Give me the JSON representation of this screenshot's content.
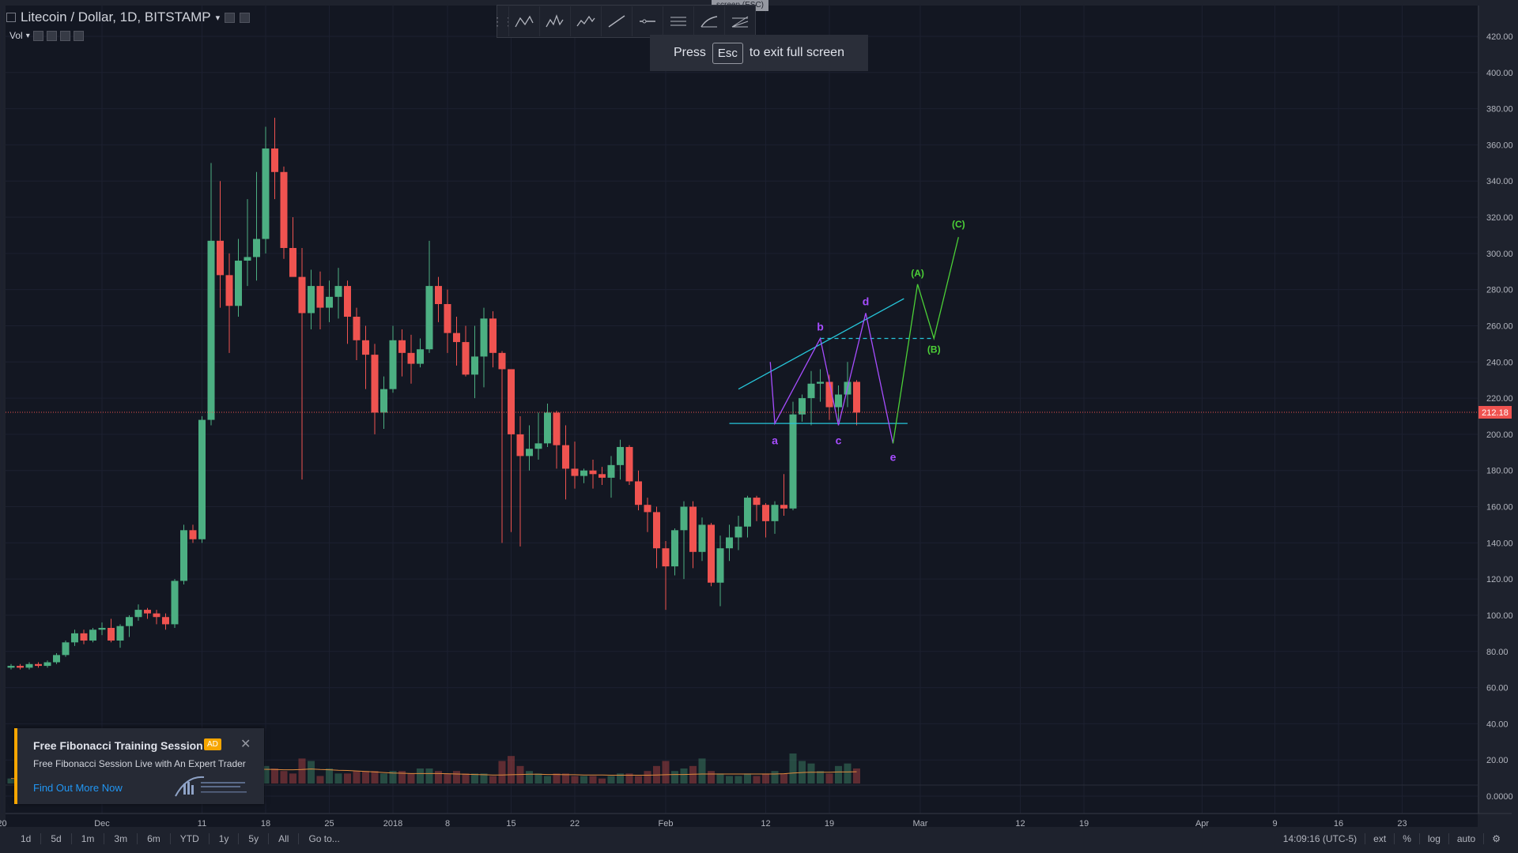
{
  "header": {
    "symbol_title": "Litecoin / Dollar, 1D, BITSTAMP",
    "volume_label": "Vol"
  },
  "fullscreen": {
    "tab_text": "screen (ESC)",
    "press": "Press",
    "key": "Esc",
    "rest": "to exit full screen"
  },
  "toolbar": {
    "tools": [
      "abcd-pattern-icon",
      "head-shoulders-icon",
      "elliott-wave-icon",
      "trend-line-icon",
      "horizontal-ray-icon",
      "parallel-channel-icon",
      "brush-icon",
      "fib-fan-icon"
    ]
  },
  "bottom_bar": {
    "ranges": [
      "1d",
      "5d",
      "1m",
      "3m",
      "6m",
      "YTD",
      "1y",
      "5y",
      "All"
    ],
    "goto": "Go to...",
    "clock": "14:09:16 (UTC-5)",
    "ext": "ext",
    "percent": "%",
    "log": "log",
    "auto": "auto"
  },
  "ad": {
    "title": "Free Fibonacci Training Session",
    "badge": "AD",
    "description": "Free Fibonacci Session Live with An Expert Trader",
    "cta": "Find Out More Now"
  },
  "colors": {
    "background": "#1e222d",
    "up": "#4caf82",
    "down": "#ef5350",
    "price_line": "#ef5350",
    "ma": "#e08c3e",
    "pattern": "#a64dff",
    "trend": "#26c6da",
    "wave": "#4cd137"
  },
  "chart_data": {
    "type": "candlestick",
    "price_axis": {
      "min": 0,
      "max": 420,
      "ticks": [
        "420.00",
        "400.00",
        "380.00",
        "360.00",
        "340.00",
        "320.00",
        "300.00",
        "280.00",
        "260.00",
        "240.00",
        "220.00",
        "200.00",
        "180.00",
        "160.00",
        "140.00",
        "120.00",
        "100.00",
        "80.00",
        "60.00",
        "40.00",
        "20.00",
        "0.0000"
      ]
    },
    "last_price": "212.18",
    "time_axis": [
      {
        "label": "20",
        "day": -1
      },
      {
        "label": "Dec",
        "day": 10
      },
      {
        "label": "11",
        "day": 21
      },
      {
        "label": "18",
        "day": 28
      },
      {
        "label": "25",
        "day": 35
      },
      {
        "label": "2018",
        "day": 42
      },
      {
        "label": "8",
        "day": 48
      },
      {
        "label": "15",
        "day": 55
      },
      {
        "label": "22",
        "day": 62
      },
      {
        "label": "Feb",
        "day": 72
      },
      {
        "label": "12",
        "day": 83
      },
      {
        "label": "19",
        "day": 90
      },
      {
        "label": "Mar",
        "day": 100
      },
      {
        "label": "12",
        "day": 111
      },
      {
        "label": "19",
        "day": 118
      },
      {
        "label": "Apr",
        "day": 131
      },
      {
        "label": "9",
        "day": 139
      },
      {
        "label": "16",
        "day": 146
      },
      {
        "label": "23",
        "day": 153
      }
    ],
    "candles": [
      [
        71,
        73,
        70,
        72
      ],
      [
        72,
        73,
        70,
        71
      ],
      [
        71,
        74,
        70,
        73
      ],
      [
        73,
        74,
        71,
        72
      ],
      [
        72,
        75,
        71,
        74
      ],
      [
        74,
        79,
        73,
        78
      ],
      [
        78,
        86,
        77,
        85
      ],
      [
        85,
        92,
        83,
        90
      ],
      [
        90,
        92,
        84,
        86
      ],
      [
        86,
        93,
        85,
        92
      ],
      [
        92,
        96,
        89,
        93
      ],
      [
        93,
        98,
        85,
        86
      ],
      [
        86,
        95,
        82,
        94
      ],
      [
        94,
        100,
        88,
        99
      ],
      [
        99,
        106,
        97,
        103
      ],
      [
        103,
        104,
        98,
        101
      ],
      [
        101,
        103,
        95,
        99
      ],
      [
        99,
        101,
        92,
        95
      ],
      [
        95,
        120,
        93,
        119
      ],
      [
        119,
        150,
        117,
        147
      ],
      [
        147,
        150,
        140,
        142
      ],
      [
        142,
        210,
        140,
        208
      ],
      [
        208,
        350,
        205,
        307
      ],
      [
        307,
        340,
        270,
        288
      ],
      [
        288,
        300,
        245,
        271
      ],
      [
        271,
        308,
        265,
        296
      ],
      [
        296,
        330,
        282,
        298
      ],
      [
        298,
        345,
        285,
        308
      ],
      [
        308,
        370,
        300,
        358
      ],
      [
        358,
        375,
        330,
        345
      ],
      [
        345,
        348,
        297,
        303
      ],
      [
        303,
        320,
        290,
        287
      ],
      [
        287,
        303,
        175,
        267
      ],
      [
        267,
        291,
        258,
        282
      ],
      [
        282,
        290,
        258,
        270
      ],
      [
        270,
        285,
        262,
        276
      ],
      [
        276,
        292,
        264,
        282
      ],
      [
        282,
        285,
        250,
        265
      ],
      [
        265,
        270,
        241,
        252
      ],
      [
        252,
        260,
        225,
        244
      ],
      [
        244,
        250,
        200,
        212
      ],
      [
        212,
        232,
        203,
        225
      ],
      [
        225,
        260,
        223,
        252
      ],
      [
        252,
        258,
        232,
        245
      ],
      [
        245,
        255,
        228,
        239
      ],
      [
        239,
        253,
        237,
        247
      ],
      [
        247,
        307,
        245,
        282
      ],
      [
        282,
        287,
        262,
        272
      ],
      [
        272,
        280,
        245,
        256
      ],
      [
        256,
        265,
        238,
        251
      ],
      [
        251,
        260,
        232,
        233
      ],
      [
        233,
        260,
        220,
        243
      ],
      [
        243,
        270,
        226,
        264
      ],
      [
        264,
        268,
        237,
        245
      ],
      [
        245,
        246,
        140,
        236
      ],
      [
        236,
        234,
        146,
        200
      ],
      [
        200,
        210,
        138,
        188
      ],
      [
        188,
        205,
        180,
        192
      ],
      [
        192,
        212,
        186,
        195
      ],
      [
        195,
        217,
        193,
        212
      ],
      [
        212,
        213,
        181,
        194
      ],
      [
        194,
        205,
        164,
        181
      ],
      [
        181,
        196,
        170,
        177
      ],
      [
        177,
        181,
        173,
        180
      ],
      [
        180,
        186,
        170,
        178
      ],
      [
        178,
        182,
        172,
        176
      ],
      [
        176,
        188,
        165,
        183
      ],
      [
        183,
        197,
        175,
        193
      ],
      [
        193,
        194,
        172,
        174
      ],
      [
        174,
        180,
        158,
        161
      ],
      [
        161,
        165,
        146,
        157
      ],
      [
        157,
        160,
        126,
        137
      ],
      [
        137,
        141,
        103,
        127
      ],
      [
        127,
        148,
        122,
        147
      ],
      [
        147,
        163,
        120,
        160
      ],
      [
        160,
        163,
        126,
        135
      ],
      [
        135,
        154,
        130,
        150
      ],
      [
        150,
        151,
        116,
        118
      ],
      [
        118,
        144,
        105,
        137
      ],
      [
        137,
        150,
        130,
        143
      ],
      [
        143,
        155,
        136,
        149
      ],
      [
        149,
        166,
        143,
        165
      ],
      [
        165,
        166,
        152,
        161
      ],
      [
        161,
        162,
        143,
        152
      ],
      [
        152,
        163,
        145,
        161
      ],
      [
        161,
        178,
        155,
        159
      ],
      [
        159,
        218,
        158,
        211
      ],
      [
        211,
        222,
        207,
        220
      ],
      [
        220,
        235,
        205,
        228
      ],
      [
        228,
        236,
        218,
        229
      ],
      [
        229,
        233,
        208,
        215
      ],
      [
        215,
        227,
        207,
        222
      ],
      [
        222,
        240,
        215,
        229
      ],
      [
        229,
        230,
        205,
        212
      ]
    ],
    "volume_max_scale": 60,
    "volumes": [
      2,
      2,
      2,
      2,
      2,
      2,
      3,
      3,
      3,
      2,
      2,
      2,
      4,
      2,
      3,
      3,
      2,
      2,
      3,
      3,
      2,
      7,
      10,
      9,
      7,
      6,
      5,
      6,
      7,
      6,
      5,
      4,
      10,
      9,
      3,
      6,
      4,
      4,
      5,
      5,
      5,
      4,
      5,
      5,
      4,
      6,
      6,
      5,
      4,
      5,
      4,
      4,
      4,
      3,
      9,
      11,
      7,
      5,
      4,
      3,
      4,
      4,
      3,
      3,
      3,
      2,
      3,
      4,
      4,
      3,
      5,
      7,
      9,
      5,
      6,
      7,
      10,
      5,
      4,
      3,
      3,
      4,
      3,
      4,
      5,
      4,
      12,
      9,
      8,
      5,
      4,
      7,
      8,
      6
    ],
    "ma_values": [
      2,
      2,
      2,
      2,
      2,
      2,
      2,
      2,
      2,
      2,
      2,
      2,
      2,
      2,
      2,
      3,
      3,
      3,
      3,
      3,
      3,
      3.3,
      4,
      4.6,
      5,
      5.4,
      5.6,
      5.6,
      5.7,
      5.6,
      5.5,
      5.5,
      5.6,
      5.8,
      5.6,
      5.5,
      5.3,
      5.2,
      5.0,
      4.8,
      4.6,
      4.4,
      4.2,
      4.1,
      4.0,
      4.0,
      4.0,
      4.0,
      3.9,
      3.8,
      3.7,
      3.6,
      3.5,
      3.4,
      3.4,
      3.5,
      3.6,
      3.7,
      3.7,
      3.6,
      3.6,
      3.5,
      3.5,
      3.4,
      3.4,
      3.4,
      3.3,
      3.3,
      3.3,
      3.3,
      3.3,
      3.4,
      3.5,
      3.6,
      3.6,
      3.7,
      3.8,
      3.8,
      3.8,
      3.8,
      3.8,
      3.8,
      3.8,
      3.8,
      3.8,
      3.9,
      4.2,
      4.4,
      4.5,
      4.5,
      4.5,
      4.6,
      4.6,
      4.7
    ],
    "annotations": {
      "triangle_labels": [
        {
          "text": "a",
          "day": 84,
          "price": 204
        },
        {
          "text": "b",
          "day": 89,
          "price": 253
        },
        {
          "text": "c",
          "day": 91,
          "price": 204
        },
        {
          "text": "d",
          "day": 94,
          "price": 267
        },
        {
          "text": "e",
          "day": 97,
          "price": 195
        }
      ],
      "wave_labels": [
        {
          "text": "(A)",
          "day": 99.7,
          "price": 283
        },
        {
          "text": "(B)",
          "day": 101.5,
          "price": 253
        },
        {
          "text": "(C)",
          "day": 104.2,
          "price": 310
        }
      ]
    }
  }
}
